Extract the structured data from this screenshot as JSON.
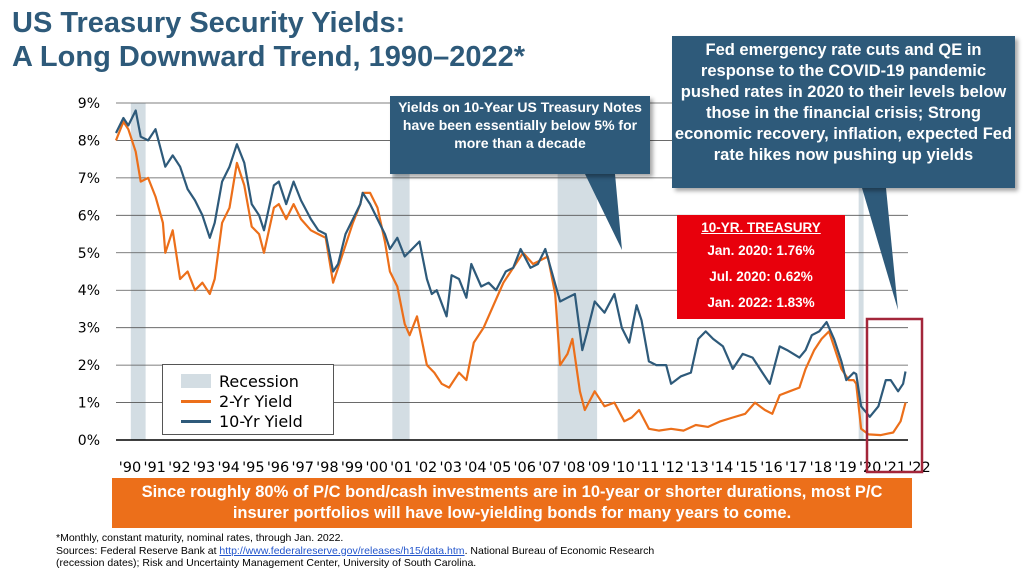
{
  "title_line1": "US Treasury Security Yields:",
  "title_line2": "A Long Downward Trend, 1990–2022*",
  "callout_left": "Yields on 10-Year US Treasury Notes have been essentially below 5% for more than a decade",
  "callout_right": "Fed emergency rate cuts and QE in response to the COVID-19 pandemic pushed rates in 2020 to their levels below those in the financial crisis; Strong economic recovery, inflation, expected Fed rate hikes now pushing up yields",
  "treasury_box": {
    "header": "10-YR. TREASURY",
    "rows": [
      "Jan. 2020: 1.76%",
      "Jul. 2020: 0.62%",
      "Jan. 2022: 1.83%"
    ]
  },
  "legend": {
    "recession": "Recession",
    "two_yr": "2-Yr Yield",
    "ten_yr": "10-Yr Yield"
  },
  "banner": "Since roughly 80% of P/C bond/cash investments are in 10-year or shorter durations, most P/C insurer portfolios will have low-yielding bonds for many years to come.",
  "footnote": "*Monthly, constant maturity, nominal rates, through Jan. 2022.",
  "sources_prefix": "Sources: Federal Reserve Bank at ",
  "sources_link": "http://www.federalreserve.gov/releases/h15/data.htm",
  "sources_suffix": ". National Bureau of Economic Research",
  "sources_line2": "(recession dates); Risk and Uncertainty Management Center, University of South Carolina.",
  "colors": {
    "title": "#2e5a7a",
    "ten_yr": "#2e5a7a",
    "two_yr": "#ec6f1a",
    "recession": "#d3dde3",
    "highlight_box": "#a3263a",
    "treasury_box": "#e8000c",
    "banner": "#ec6f1a"
  },
  "chart_data": {
    "type": "line",
    "x_range": [
      1990,
      2022.1
    ],
    "ylim": [
      0,
      9
    ],
    "y_ticks": [
      "0%",
      "1%",
      "2%",
      "3%",
      "4%",
      "5%",
      "6%",
      "7%",
      "8%",
      "9%"
    ],
    "x_tick_labels": [
      "'90",
      "'91",
      "'92",
      "'93",
      "'94",
      "'95",
      "'96",
      "'97",
      "'98",
      "'99",
      "'00",
      "'01",
      "'02",
      "'03",
      "'04",
      "'05",
      "'06",
      "'07",
      "'08",
      "'09",
      "'10",
      "'11",
      "'12",
      "'13",
      "'14",
      "'15",
      "'16",
      "'17",
      "'18",
      "'19",
      "'20",
      "'21",
      "'22"
    ],
    "recessions": [
      [
        1990.6,
        1991.2
      ],
      [
        2001.2,
        2001.9
      ],
      [
        2007.9,
        2009.5
      ],
      [
        2020.1,
        2020.3
      ]
    ],
    "series": [
      {
        "name": "10-Yr Yield",
        "points": [
          [
            1990,
            8.2
          ],
          [
            1990.3,
            8.6
          ],
          [
            1990.5,
            8.4
          ],
          [
            1990.8,
            8.8
          ],
          [
            1991,
            8.1
          ],
          [
            1991.3,
            8.0
          ],
          [
            1991.6,
            8.3
          ],
          [
            1991.8,
            7.8
          ],
          [
            1992,
            7.3
          ],
          [
            1992.3,
            7.6
          ],
          [
            1992.6,
            7.3
          ],
          [
            1992.9,
            6.7
          ],
          [
            1993.2,
            6.4
          ],
          [
            1993.5,
            6.0
          ],
          [
            1993.8,
            5.4
          ],
          [
            1994,
            5.8
          ],
          [
            1994.3,
            6.9
          ],
          [
            1994.6,
            7.3
          ],
          [
            1994.9,
            7.9
          ],
          [
            1995.2,
            7.4
          ],
          [
            1995.5,
            6.3
          ],
          [
            1995.8,
            6.0
          ],
          [
            1996,
            5.6
          ],
          [
            1996.4,
            6.8
          ],
          [
            1996.6,
            6.9
          ],
          [
            1996.9,
            6.3
          ],
          [
            1997.2,
            6.9
          ],
          [
            1997.5,
            6.4
          ],
          [
            1997.9,
            5.9
          ],
          [
            1998.2,
            5.6
          ],
          [
            1998.5,
            5.5
          ],
          [
            1998.8,
            4.5
          ],
          [
            1999,
            4.7
          ],
          [
            1999.3,
            5.5
          ],
          [
            1999.6,
            5.9
          ],
          [
            1999.9,
            6.3
          ],
          [
            2000,
            6.6
          ],
          [
            2000.3,
            6.3
          ],
          [
            2000.6,
            5.9
          ],
          [
            2000.9,
            5.5
          ],
          [
            2001.1,
            5.1
          ],
          [
            2001.4,
            5.4
          ],
          [
            2001.7,
            4.9
          ],
          [
            2002,
            5.1
          ],
          [
            2002.3,
            5.3
          ],
          [
            2002.6,
            4.3
          ],
          [
            2002.8,
            3.9
          ],
          [
            2003,
            4.0
          ],
          [
            2003.4,
            3.3
          ],
          [
            2003.6,
            4.4
          ],
          [
            2003.9,
            4.3
          ],
          [
            2004.2,
            3.8
          ],
          [
            2004.4,
            4.7
          ],
          [
            2004.8,
            4.1
          ],
          [
            2005.1,
            4.2
          ],
          [
            2005.4,
            4.0
          ],
          [
            2005.8,
            4.5
          ],
          [
            2006.1,
            4.6
          ],
          [
            2006.4,
            5.1
          ],
          [
            2006.8,
            4.6
          ],
          [
            2007.1,
            4.7
          ],
          [
            2007.4,
            5.1
          ],
          [
            2007.7,
            4.4
          ],
          [
            2008,
            3.7
          ],
          [
            2008.3,
            3.8
          ],
          [
            2008.6,
            3.9
          ],
          [
            2008.9,
            2.4
          ],
          [
            2009.1,
            2.9
          ],
          [
            2009.4,
            3.7
          ],
          [
            2009.8,
            3.4
          ],
          [
            2010.2,
            3.9
          ],
          [
            2010.5,
            3.0
          ],
          [
            2010.8,
            2.6
          ],
          [
            2011.1,
            3.6
          ],
          [
            2011.3,
            3.2
          ],
          [
            2011.6,
            2.1
          ],
          [
            2011.9,
            2.0
          ],
          [
            2012.3,
            2.0
          ],
          [
            2012.5,
            1.5
          ],
          [
            2012.9,
            1.7
          ],
          [
            2013.3,
            1.8
          ],
          [
            2013.6,
            2.7
          ],
          [
            2013.9,
            2.9
          ],
          [
            2014.2,
            2.7
          ],
          [
            2014.6,
            2.5
          ],
          [
            2015,
            1.9
          ],
          [
            2015.4,
            2.3
          ],
          [
            2015.8,
            2.2
          ],
          [
            2016.2,
            1.8
          ],
          [
            2016.5,
            1.5
          ],
          [
            2016.9,
            2.5
          ],
          [
            2017.2,
            2.4
          ],
          [
            2017.7,
            2.2
          ],
          [
            2017.95,
            2.4
          ],
          [
            2018.2,
            2.8
          ],
          [
            2018.5,
            2.9
          ],
          [
            2018.8,
            3.15
          ],
          [
            2019.1,
            2.7
          ],
          [
            2019.4,
            2.1
          ],
          [
            2019.6,
            1.6
          ],
          [
            2019.9,
            1.8
          ],
          [
            2020,
            1.76
          ],
          [
            2020.2,
            0.9
          ],
          [
            2020.55,
            0.62
          ],
          [
            2020.9,
            0.9
          ],
          [
            2021.2,
            1.6
          ],
          [
            2021.4,
            1.6
          ],
          [
            2021.7,
            1.3
          ],
          [
            2021.9,
            1.5
          ],
          [
            2022,
            1.83
          ]
        ]
      },
      {
        "name": "2-Yr Yield",
        "points": [
          [
            1990,
            8.0
          ],
          [
            1990.3,
            8.5
          ],
          [
            1990.5,
            8.3
          ],
          [
            1990.8,
            7.7
          ],
          [
            1991,
            6.9
          ],
          [
            1991.3,
            7.0
          ],
          [
            1991.6,
            6.5
          ],
          [
            1991.9,
            5.8
          ],
          [
            1992,
            5.0
          ],
          [
            1992.3,
            5.6
          ],
          [
            1992.6,
            4.3
          ],
          [
            1992.9,
            4.5
          ],
          [
            1993.2,
            4.0
          ],
          [
            1993.5,
            4.2
          ],
          [
            1993.8,
            3.9
          ],
          [
            1994,
            4.3
          ],
          [
            1994.3,
            5.8
          ],
          [
            1994.6,
            6.2
          ],
          [
            1994.9,
            7.4
          ],
          [
            1995.2,
            6.8
          ],
          [
            1995.5,
            5.7
          ],
          [
            1995.8,
            5.5
          ],
          [
            1996,
            5.0
          ],
          [
            1996.4,
            6.2
          ],
          [
            1996.6,
            6.3
          ],
          [
            1996.9,
            5.9
          ],
          [
            1997.2,
            6.3
          ],
          [
            1997.5,
            5.9
          ],
          [
            1997.9,
            5.6
          ],
          [
            1998.2,
            5.5
          ],
          [
            1998.5,
            5.4
          ],
          [
            1998.8,
            4.2
          ],
          [
            1999,
            4.6
          ],
          [
            1999.3,
            5.2
          ],
          [
            1999.6,
            5.8
          ],
          [
            1999.9,
            6.3
          ],
          [
            2000,
            6.6
          ],
          [
            2000.3,
            6.6
          ],
          [
            2000.6,
            6.2
          ],
          [
            2000.9,
            5.3
          ],
          [
            2001.1,
            4.5
          ],
          [
            2001.4,
            4.1
          ],
          [
            2001.7,
            3.1
          ],
          [
            2001.9,
            2.8
          ],
          [
            2002.2,
            3.3
          ],
          [
            2002.6,
            2.0
          ],
          [
            2002.9,
            1.8
          ],
          [
            2003.2,
            1.5
          ],
          [
            2003.5,
            1.4
          ],
          [
            2003.9,
            1.8
          ],
          [
            2004.2,
            1.6
          ],
          [
            2004.5,
            2.6
          ],
          [
            2004.9,
            3.0
          ],
          [
            2005.3,
            3.6
          ],
          [
            2005.7,
            4.2
          ],
          [
            2006.1,
            4.6
          ],
          [
            2006.5,
            5.0
          ],
          [
            2006.9,
            4.7
          ],
          [
            2007.2,
            4.8
          ],
          [
            2007.5,
            4.9
          ],
          [
            2007.8,
            3.9
          ],
          [
            2008,
            2.0
          ],
          [
            2008.3,
            2.3
          ],
          [
            2008.5,
            2.7
          ],
          [
            2008.8,
            1.3
          ],
          [
            2009,
            0.8
          ],
          [
            2009.4,
            1.3
          ],
          [
            2009.8,
            0.9
          ],
          [
            2010.2,
            1.0
          ],
          [
            2010.6,
            0.5
          ],
          [
            2010.9,
            0.6
          ],
          [
            2011.2,
            0.8
          ],
          [
            2011.6,
            0.3
          ],
          [
            2012,
            0.25
          ],
          [
            2012.5,
            0.3
          ],
          [
            2013,
            0.25
          ],
          [
            2013.5,
            0.4
          ],
          [
            2014,
            0.35
          ],
          [
            2014.5,
            0.5
          ],
          [
            2015,
            0.6
          ],
          [
            2015.5,
            0.7
          ],
          [
            2015.9,
            1.0
          ],
          [
            2016.3,
            0.8
          ],
          [
            2016.6,
            0.7
          ],
          [
            2016.9,
            1.2
          ],
          [
            2017.3,
            1.3
          ],
          [
            2017.7,
            1.4
          ],
          [
            2017.95,
            1.9
          ],
          [
            2018.3,
            2.4
          ],
          [
            2018.6,
            2.7
          ],
          [
            2018.9,
            2.9
          ],
          [
            2019.1,
            2.5
          ],
          [
            2019.4,
            1.9
          ],
          [
            2019.7,
            1.6
          ],
          [
            2019.9,
            1.6
          ],
          [
            2020,
            1.5
          ],
          [
            2020.2,
            0.3
          ],
          [
            2020.5,
            0.15
          ],
          [
            2021,
            0.13
          ],
          [
            2021.5,
            0.2
          ],
          [
            2021.8,
            0.5
          ],
          [
            2022,
            1.0
          ]
        ]
      }
    ]
  }
}
